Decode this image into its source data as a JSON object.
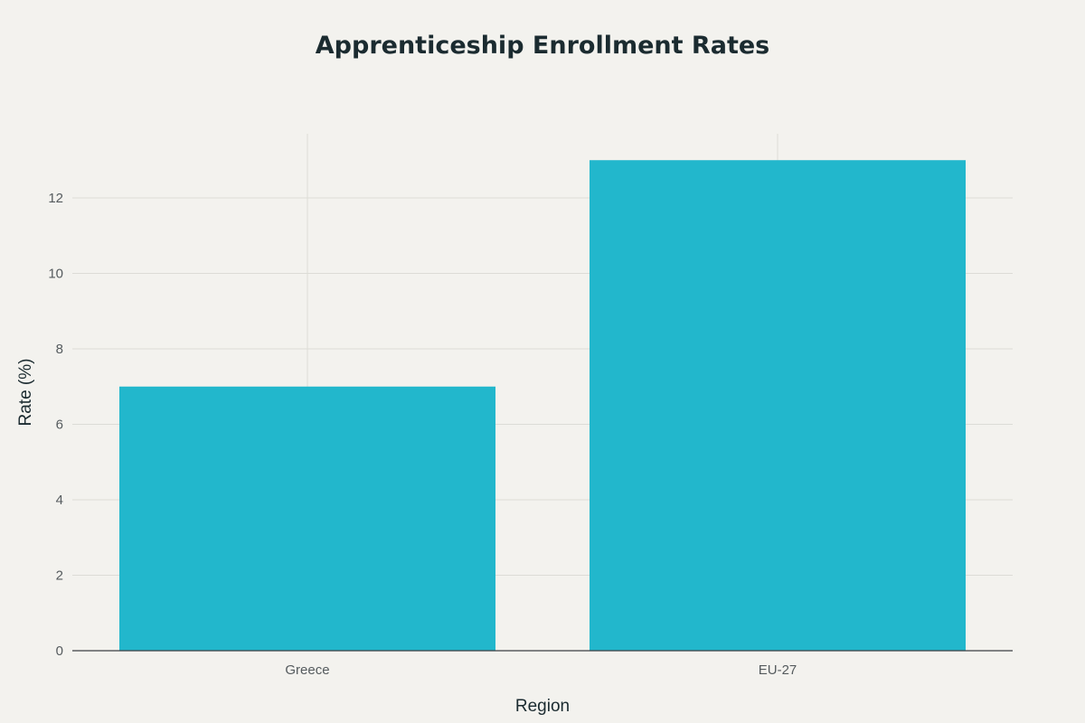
{
  "chart_data": {
    "type": "bar",
    "title": "Apprenticeship Enrollment Rates",
    "xlabel": "Region",
    "ylabel": "Rate (%)",
    "categories": [
      "Greece",
      "EU-27"
    ],
    "values": [
      7,
      13
    ],
    "ylim": [
      0,
      13.7
    ],
    "yticks": [
      0,
      2,
      4,
      6,
      8,
      10,
      12
    ],
    "grid": true,
    "bar_color": "#22b7cc",
    "legend": "none"
  }
}
